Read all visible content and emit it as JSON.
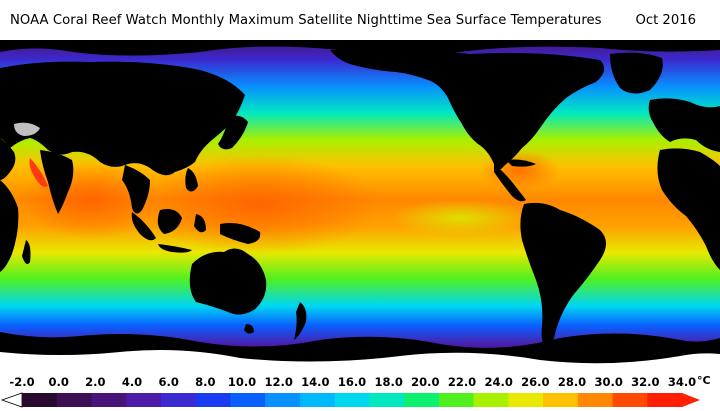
{
  "title": "NOAA Coral Reef Watch Monthly Maximum Satellite Nighttime Sea Surface Temperatures",
  "date": "Oct 2016",
  "legend": {
    "ticks": [
      "-2.0",
      "0.0",
      "2.0",
      "4.0",
      "6.0",
      "8.0",
      "10.0",
      "12.0",
      "14.0",
      "16.0",
      "18.0",
      "20.0",
      "22.0",
      "24.0",
      "26.0",
      "28.0",
      "30.0",
      "32.0",
      "34.0"
    ],
    "unit": "°C",
    "min": -2.0,
    "max": 34.0,
    "colors": [
      "#2a0a2e",
      "#3b0f52",
      "#4a137a",
      "#4e1aa8",
      "#3a2ad0",
      "#1a3cf0",
      "#0a60ff",
      "#0890ff",
      "#00b8ff",
      "#00d8f0",
      "#00e8c0",
      "#10f070",
      "#50f020",
      "#a8f000",
      "#e8e800",
      "#ffc000",
      "#ff8800",
      "#ff4a00",
      "#ff2000"
    ]
  },
  "map": {
    "land_color": "#000000",
    "ice_color": "#ffffff",
    "nodata_color": "#c0c0c0"
  }
}
